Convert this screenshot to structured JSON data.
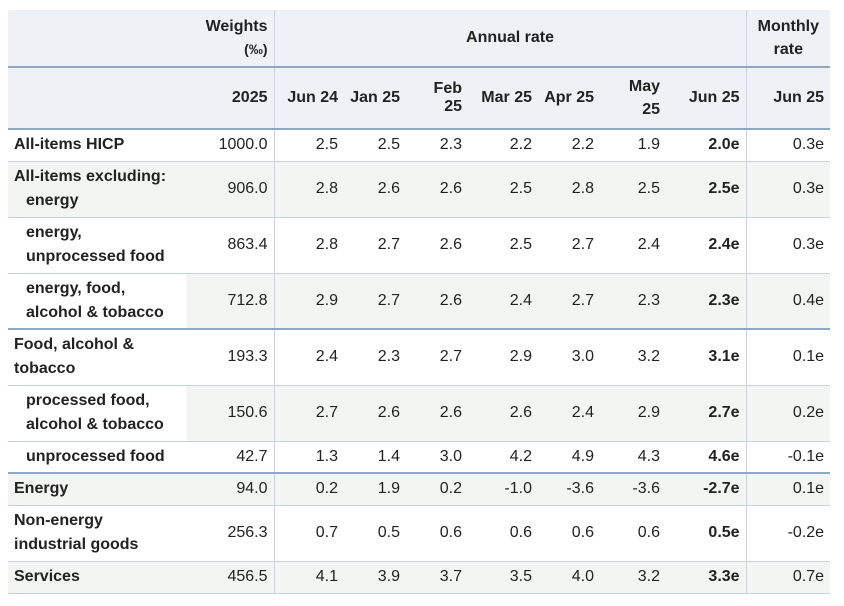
{
  "header": {
    "weights_label_line1": "Weights",
    "weights_label_line2": "(‰)",
    "annual_label": "Annual rate",
    "monthly_label_line1": "Monthly",
    "monthly_label_line2": "rate",
    "columns": [
      "2025",
      "Jun 24",
      "Jan 25",
      "Feb 25",
      "Mar 25",
      "Apr 25",
      "May 25",
      "Jun 25",
      "Jun 25"
    ]
  },
  "rows": [
    {
      "label_line1": "All-items HICP",
      "label_line2": "",
      "weight": "1000.0",
      "values": [
        "2.5",
        "2.5",
        "2.3",
        "2.2",
        "2.2",
        "1.9",
        "2.0e"
      ],
      "monthly": "0.3e"
    },
    {
      "label_line1": "All-items excluding:",
      "label_line2": "energy",
      "weight": "906.0",
      "values": [
        "2.8",
        "2.6",
        "2.6",
        "2.5",
        "2.8",
        "2.5",
        "2.5e"
      ],
      "monthly": "0.3e"
    },
    {
      "label_line1": "energy,",
      "label_line2": "unprocessed food",
      "weight": "863.4",
      "values": [
        "2.8",
        "2.7",
        "2.6",
        "2.5",
        "2.7",
        "2.4",
        "2.4e"
      ],
      "monthly": "0.3e"
    },
    {
      "label_line1": "energy, food,",
      "label_line2": "alcohol & tobacco",
      "weight": "712.8",
      "values": [
        "2.9",
        "2.7",
        "2.6",
        "2.4",
        "2.7",
        "2.3",
        "2.3e"
      ],
      "monthly": "0.4e"
    },
    {
      "label_line1": "Food, alcohol &",
      "label_line2": "tobacco",
      "weight": "193.3",
      "values": [
        "2.4",
        "2.3",
        "2.7",
        "2.9",
        "3.0",
        "3.2",
        "3.1e"
      ],
      "monthly": "0.1e"
    },
    {
      "label_line1": "processed food,",
      "label_line2": "alcohol & tobacco",
      "weight": "150.6",
      "values": [
        "2.7",
        "2.6",
        "2.6",
        "2.6",
        "2.4",
        "2.9",
        "2.7e"
      ],
      "monthly": "0.2e"
    },
    {
      "label_line1": "unprocessed food",
      "label_line2": "",
      "weight": "42.7",
      "values": [
        "1.3",
        "1.4",
        "3.0",
        "4.2",
        "4.9",
        "4.3",
        "4.6e"
      ],
      "monthly": "-0.1e"
    },
    {
      "label_line1": "Energy",
      "label_line2": "",
      "weight": "94.0",
      "values": [
        "0.2",
        "1.9",
        "0.2",
        "-1.0",
        "-3.6",
        "-3.6",
        "-2.7e"
      ],
      "monthly": "0.1e"
    },
    {
      "label_line1": "Non-energy",
      "label_line2": "industrial goods",
      "weight": "256.3",
      "values": [
        "0.7",
        "0.5",
        "0.6",
        "0.6",
        "0.6",
        "0.6",
        "0.5e"
      ],
      "monthly": "-0.2e"
    },
    {
      "label_line1": "Services",
      "label_line2": "",
      "weight": "456.5",
      "values": [
        "4.1",
        "3.9",
        "3.7",
        "3.5",
        "4.0",
        "3.2",
        "3.3e"
      ],
      "monthly": "0.7e"
    }
  ]
}
